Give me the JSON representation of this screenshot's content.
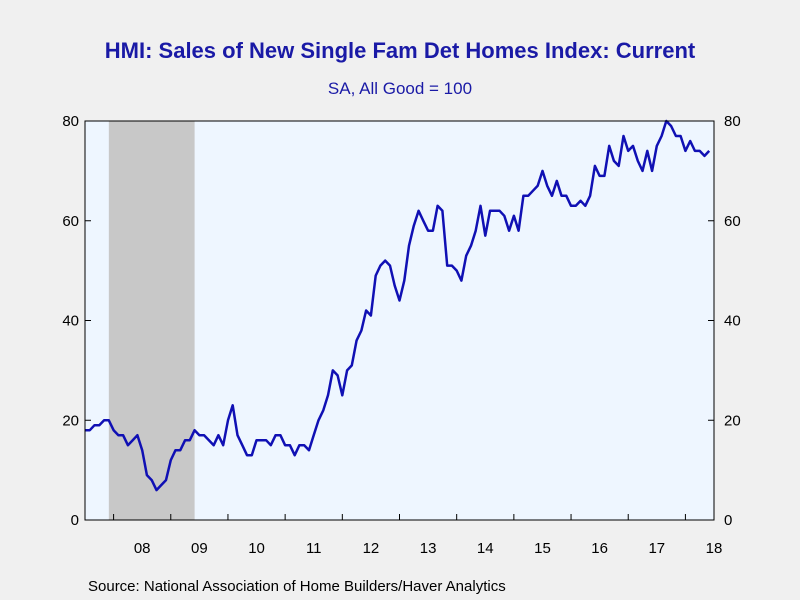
{
  "chart_data": {
    "type": "line",
    "title": "HMI: Sales of New Single Fam Det Homes Index: Current",
    "subtitle": "SA, All Good = 100",
    "source": "Source:  National Association of Home Builders/Haver Analytics",
    "xlabel": "",
    "ylabel": "",
    "ylim": [
      0,
      80
    ],
    "yticks": [
      0,
      20,
      40,
      60,
      80
    ],
    "right_yticks": [
      0,
      20,
      40,
      60,
      80
    ],
    "x_start": "2007-07",
    "x_end": "2018-07",
    "xtick_labels": [
      "08",
      "09",
      "10",
      "11",
      "12",
      "13",
      "14",
      "15",
      "16",
      "17",
      "18"
    ],
    "recession_shading": {
      "start": "2007-12",
      "end": "2009-06"
    },
    "plot_background": "#eef6ff",
    "recession_color": "#c8c8c8",
    "line_color": "#1010b4",
    "grid": false,
    "series": [
      {
        "values": [
          {
            "x": "2007-07",
            "y": 18
          },
          {
            "x": "2007-08",
            "y": 18
          },
          {
            "x": "2007-09",
            "y": 19
          },
          {
            "x": "2007-10",
            "y": 19
          },
          {
            "x": "2007-11",
            "y": 20
          },
          {
            "x": "2007-12",
            "y": 20
          },
          {
            "x": "2008-01",
            "y": 18
          },
          {
            "x": "2008-02",
            "y": 17
          },
          {
            "x": "2008-03",
            "y": 17
          },
          {
            "x": "2008-04",
            "y": 15
          },
          {
            "x": "2008-05",
            "y": 16
          },
          {
            "x": "2008-06",
            "y": 17
          },
          {
            "x": "2008-07",
            "y": 14
          },
          {
            "x": "2008-08",
            "y": 9
          },
          {
            "x": "2008-09",
            "y": 8
          },
          {
            "x": "2008-10",
            "y": 6
          },
          {
            "x": "2008-11",
            "y": 7
          },
          {
            "x": "2008-12",
            "y": 8
          },
          {
            "x": "2009-01",
            "y": 12
          },
          {
            "x": "2009-02",
            "y": 14
          },
          {
            "x": "2009-03",
            "y": 14
          },
          {
            "x": "2009-04",
            "y": 16
          },
          {
            "x": "2009-05",
            "y": 16
          },
          {
            "x": "2009-06",
            "y": 18
          },
          {
            "x": "2009-07",
            "y": 17
          },
          {
            "x": "2009-08",
            "y": 17
          },
          {
            "x": "2009-09",
            "y": 16
          },
          {
            "x": "2009-10",
            "y": 15
          },
          {
            "x": "2009-11",
            "y": 17
          },
          {
            "x": "2009-12",
            "y": 15
          },
          {
            "x": "2010-01",
            "y": 20
          },
          {
            "x": "2010-02",
            "y": 23
          },
          {
            "x": "2010-03",
            "y": 17
          },
          {
            "x": "2010-04",
            "y": 15
          },
          {
            "x": "2010-05",
            "y": 13
          },
          {
            "x": "2010-06",
            "y": 13
          },
          {
            "x": "2010-07",
            "y": 16
          },
          {
            "x": "2010-08",
            "y": 16
          },
          {
            "x": "2010-09",
            "y": 16
          },
          {
            "x": "2010-10",
            "y": 15
          },
          {
            "x": "2010-11",
            "y": 17
          },
          {
            "x": "2010-12",
            "y": 17
          },
          {
            "x": "2011-01",
            "y": 15
          },
          {
            "x": "2011-02",
            "y": 15
          },
          {
            "x": "2011-03",
            "y": 13
          },
          {
            "x": "2011-04",
            "y": 15
          },
          {
            "x": "2011-05",
            "y": 15
          },
          {
            "x": "2011-06",
            "y": 14
          },
          {
            "x": "2011-07",
            "y": 17
          },
          {
            "x": "2011-08",
            "y": 20
          },
          {
            "x": "2011-09",
            "y": 22
          },
          {
            "x": "2011-10",
            "y": 25
          },
          {
            "x": "2011-11",
            "y": 30
          },
          {
            "x": "2011-12",
            "y": 29
          },
          {
            "x": "2012-01",
            "y": 25
          },
          {
            "x": "2012-02",
            "y": 30
          },
          {
            "x": "2012-03",
            "y": 31
          },
          {
            "x": "2012-04",
            "y": 36
          },
          {
            "x": "2012-05",
            "y": 38
          },
          {
            "x": "2012-06",
            "y": 42
          },
          {
            "x": "2012-07",
            "y": 41
          },
          {
            "x": "2012-08",
            "y": 49
          },
          {
            "x": "2012-09",
            "y": 51
          },
          {
            "x": "2012-10",
            "y": 52
          },
          {
            "x": "2012-11",
            "y": 51
          },
          {
            "x": "2012-12",
            "y": 47
          },
          {
            "x": "2013-01",
            "y": 44
          },
          {
            "x": "2013-02",
            "y": 48
          },
          {
            "x": "2013-03",
            "y": 55
          },
          {
            "x": "2013-04",
            "y": 59
          },
          {
            "x": "2013-05",
            "y": 62
          },
          {
            "x": "2013-06",
            "y": 60
          },
          {
            "x": "2013-07",
            "y": 58
          },
          {
            "x": "2013-08",
            "y": 58
          },
          {
            "x": "2013-09",
            "y": 63
          },
          {
            "x": "2013-10",
            "y": 62
          },
          {
            "x": "2013-11",
            "y": 51
          },
          {
            "x": "2013-12",
            "y": 51
          },
          {
            "x": "2014-01",
            "y": 50
          },
          {
            "x": "2014-02",
            "y": 48
          },
          {
            "x": "2014-03",
            "y": 53
          },
          {
            "x": "2014-04",
            "y": 55
          },
          {
            "x": "2014-05",
            "y": 58
          },
          {
            "x": "2014-06",
            "y": 63
          },
          {
            "x": "2014-07",
            "y": 57
          },
          {
            "x": "2014-08",
            "y": 62
          },
          {
            "x": "2014-09",
            "y": 62
          },
          {
            "x": "2014-10",
            "y": 62
          },
          {
            "x": "2014-11",
            "y": 61
          },
          {
            "x": "2014-12",
            "y": 58
          },
          {
            "x": "2015-01",
            "y": 61
          },
          {
            "x": "2015-02",
            "y": 58
          },
          {
            "x": "2015-03",
            "y": 65
          },
          {
            "x": "2015-04",
            "y": 65
          },
          {
            "x": "2015-05",
            "y": 66
          },
          {
            "x": "2015-06",
            "y": 67
          },
          {
            "x": "2015-07",
            "y": 70
          },
          {
            "x": "2015-08",
            "y": 67
          },
          {
            "x": "2015-09",
            "y": 65
          },
          {
            "x": "2015-10",
            "y": 68
          },
          {
            "x": "2015-11",
            "y": 65
          },
          {
            "x": "2015-12",
            "y": 65
          },
          {
            "x": "2016-01",
            "y": 63
          },
          {
            "x": "2016-02",
            "y": 63
          },
          {
            "x": "2016-03",
            "y": 64
          },
          {
            "x": "2016-04",
            "y": 63
          },
          {
            "x": "2016-05",
            "y": 65
          },
          {
            "x": "2016-06",
            "y": 71
          },
          {
            "x": "2016-07",
            "y": 69
          },
          {
            "x": "2016-08",
            "y": 69
          },
          {
            "x": "2016-09",
            "y": 75
          },
          {
            "x": "2016-10",
            "y": 72
          },
          {
            "x": "2016-11",
            "y": 71
          },
          {
            "x": "2016-12",
            "y": 77
          },
          {
            "x": "2017-01",
            "y": 74
          },
          {
            "x": "2017-02",
            "y": 75
          },
          {
            "x": "2017-03",
            "y": 72
          },
          {
            "x": "2017-04",
            "y": 70
          },
          {
            "x": "2017-05",
            "y": 74
          },
          {
            "x": "2017-06",
            "y": 70
          },
          {
            "x": "2017-07",
            "y": 75
          },
          {
            "x": "2017-08",
            "y": 77
          },
          {
            "x": "2017-09",
            "y": 80
          },
          {
            "x": "2017-10",
            "y": 79
          },
          {
            "x": "2017-11",
            "y": 77
          },
          {
            "x": "2017-12",
            "y": 77
          },
          {
            "x": "2018-01",
            "y": 74
          },
          {
            "x": "2018-02",
            "y": 76
          },
          {
            "x": "2018-03",
            "y": 74
          },
          {
            "x": "2018-04",
            "y": 74
          },
          {
            "x": "2018-05",
            "y": 73
          },
          {
            "x": "2018-06",
            "y": 74
          }
        ]
      }
    ]
  }
}
